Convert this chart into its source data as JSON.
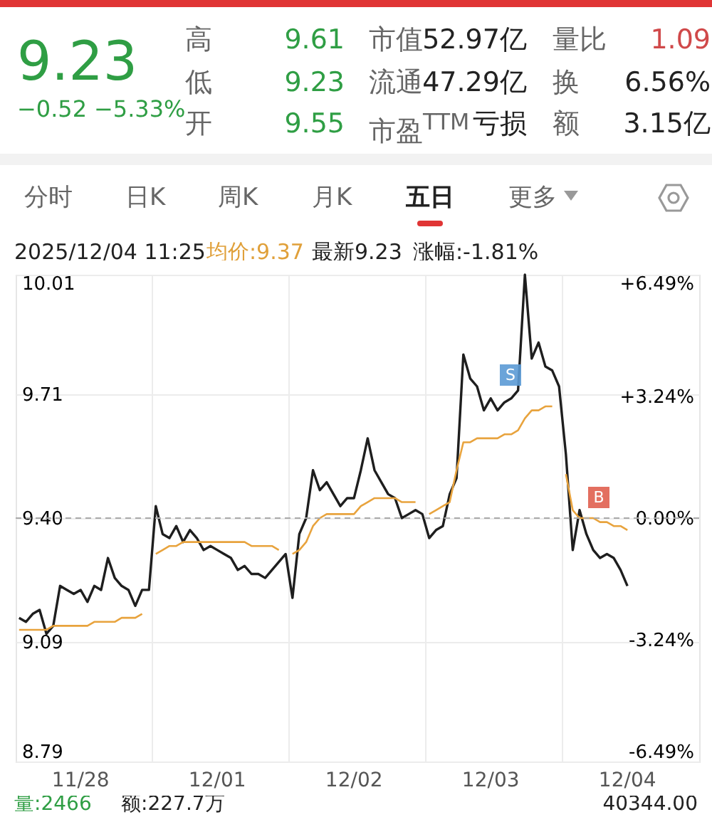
{
  "chart_data": {
    "type": "line",
    "annotations": [
      "9.23",
      "−0.52",
      "−5.33%",
      "高",
      "9.61",
      "市值",
      "52.97亿",
      "量比",
      "1.09",
      "低",
      "9.23",
      "流通",
      "47.29亿",
      "换",
      "6.56%",
      "开",
      "9.55",
      "市盈$^{TTM}$",
      "亏损",
      "额",
      "3.15亿",
      "分时",
      "日K",
      "周K",
      "月K",
      "五日",
      "更多",
      "2025/12/04 11:25",
      "均价:9.37",
      "最新9.23",
      "涨幅:-1.81%",
      "量:2466",
      "额:227.7万",
      "40344.00",
      "S",
      "B"
    ],
    "categories": [
      null,
      null,
      null,
      null,
      null,
      null,
      null,
      null,
      null,
      "11/28",
      null,
      null,
      null,
      null,
      null,
      null,
      null,
      null,
      null,
      null,
      null,
      null,
      null,
      null,
      null,
      null,
      null,
      null,
      null,
      "12/01",
      null,
      null,
      null,
      null,
      null,
      null,
      null,
      null,
      null,
      null,
      null,
      null,
      null,
      null,
      null,
      null,
      null,
      null,
      null,
      "12/02",
      null,
      null,
      null,
      null,
      null,
      null,
      null,
      null,
      null,
      null,
      null,
      null,
      null,
      null,
      null,
      null,
      null,
      null,
      null,
      "12/03",
      null,
      null,
      null,
      null,
      null,
      null,
      null,
      null,
      null,
      null,
      null,
      null,
      null,
      null,
      null,
      null,
      null,
      null,
      null,
      "12/04",
      null,
      null,
      null,
      null,
      null,
      null,
      null,
      null,
      null,
      null
    ],
    "series": [
      {
        "color": "#1e1e1e",
        "values": [
          9.15,
          9.14,
          9.16,
          9.17,
          9.11,
          9.13,
          9.23,
          9.22,
          9.21,
          9.22,
          9.19,
          9.23,
          9.22,
          9.3,
          9.25,
          9.23,
          9.22,
          9.18,
          9.22,
          9.22,
          9.43,
          9.36,
          9.35,
          9.38,
          9.34,
          9.37,
          9.35,
          9.32,
          9.33,
          9.32,
          9.31,
          9.3,
          9.27,
          9.28,
          9.26,
          9.26,
          9.25,
          9.27,
          9.29,
          9.31,
          9.2,
          9.36,
          9.4,
          9.52,
          9.47,
          9.49,
          9.46,
          9.43,
          9.45,
          9.45,
          9.52,
          9.6,
          9.52,
          9.49,
          9.46,
          9.45,
          9.4,
          9.41,
          9.42,
          9.41,
          9.35,
          9.37,
          9.38,
          9.46,
          9.5,
          9.81,
          9.75,
          9.73,
          9.67,
          9.7,
          9.67,
          9.69,
          9.7,
          9.72,
          10.01,
          9.8,
          9.84,
          9.78,
          9.77,
          9.73,
          9.56,
          9.32,
          9.42,
          9.36,
          9.32,
          9.3,
          9.31,
          9.3,
          9.27,
          9.23,
          null,
          null,
          null,
          null,
          null,
          null,
          null,
          null,
          null,
          null
        ]
      },
      {
        "color": "#e8a33d",
        "values": [
          9.12,
          9.12,
          9.12,
          9.12,
          9.12,
          9.13,
          9.13,
          9.13,
          9.13,
          9.13,
          9.13,
          9.14,
          9.14,
          9.14,
          9.14,
          9.15,
          9.15,
          9.15,
          9.16,
          null,
          9.31,
          9.32,
          9.33,
          9.33,
          9.34,
          9.34,
          9.34,
          9.34,
          9.34,
          9.34,
          9.34,
          9.34,
          9.34,
          9.34,
          9.33,
          9.33,
          9.33,
          9.33,
          9.32,
          null,
          9.31,
          9.32,
          9.34,
          9.38,
          9.4,
          9.41,
          9.41,
          9.41,
          9.41,
          9.41,
          9.43,
          9.44,
          9.45,
          9.45,
          9.45,
          9.45,
          9.44,
          9.44,
          9.44,
          null,
          9.41,
          9.42,
          9.43,
          9.44,
          9.52,
          9.59,
          9.59,
          9.6,
          9.6,
          9.6,
          9.6,
          9.61,
          9.61,
          9.62,
          9.65,
          9.67,
          9.67,
          9.68,
          9.68,
          null,
          9.51,
          9.42,
          9.4,
          9.4,
          9.4,
          9.39,
          9.39,
          9.38,
          9.38,
          9.37,
          null,
          null,
          null,
          null,
          null,
          null,
          null,
          null,
          null,
          null
        ]
      }
    ],
    "ylim": [
      8.79,
      10.01
    ],
    "yticks": [
      8.79,
      9.09,
      {
        "value": 9.4,
        "label": "9.40"
      },
      9.71,
      10.01
    ],
    "y2lim": [
      -6.49,
      6.49
    ],
    "y2ticks": [
      {
        "value": -6.49,
        "label": "-6.49%"
      },
      {
        "value": -3.24,
        "label": "-3.24%"
      },
      {
        "value": 0,
        "label": "0.00%"
      },
      {
        "value": 3.24,
        "label": "+3.24%"
      },
      {
        "value": 6.49,
        "label": "+6.49%"
      }
    ],
    "ref_lines": [
      {
        "axis": "y2",
        "value": 0,
        "color": "#aaaaaa",
        "line_style": "dashed"
      }
    ],
    "grid": true,
    "line_style": "solid"
  }
}
